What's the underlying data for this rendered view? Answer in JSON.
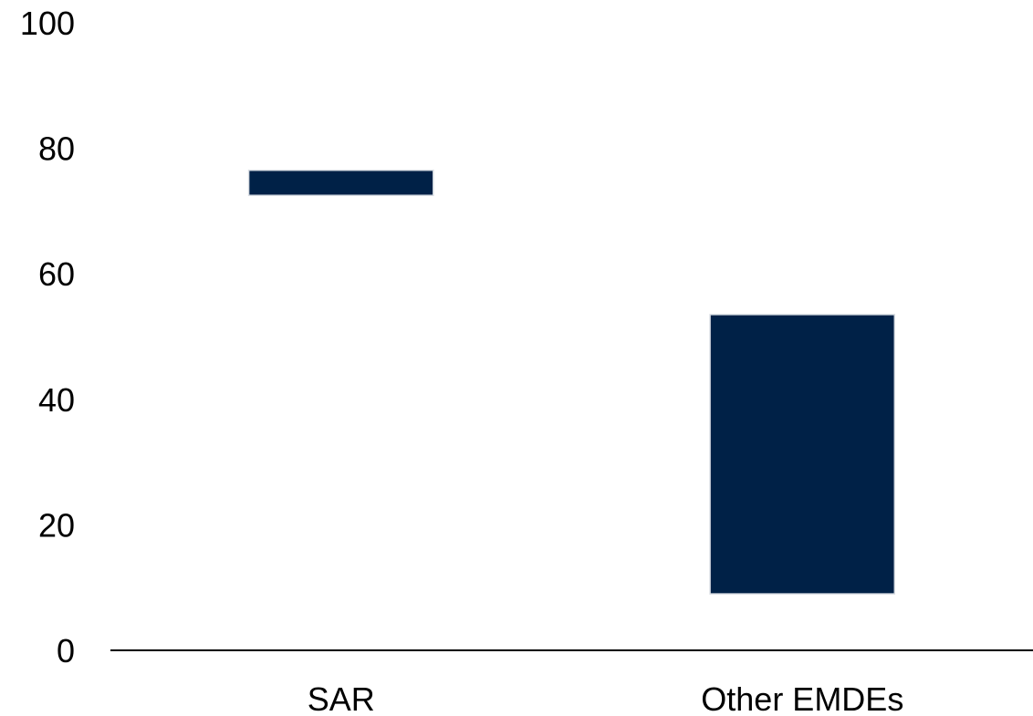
{
  "chart_data": {
    "type": "bar",
    "bar_style": "floating-range",
    "categories": [
      "SAR",
      "Other EMDEs"
    ],
    "series": [
      {
        "ranges": [
          [
            72.5,
            76.5
          ],
          [
            9,
            53.5
          ]
        ]
      }
    ],
    "title": "",
    "xlabel": "",
    "ylabel": "",
    "ylim": [
      0,
      100
    ],
    "yticks": [
      "0",
      "20",
      "40",
      "60",
      "80",
      "100"
    ],
    "grid": false,
    "legend": "none",
    "colors": {
      "bar": "#002147",
      "bar_outline": "#d9dde3",
      "axis": "#000000",
      "text": "#000000"
    }
  }
}
